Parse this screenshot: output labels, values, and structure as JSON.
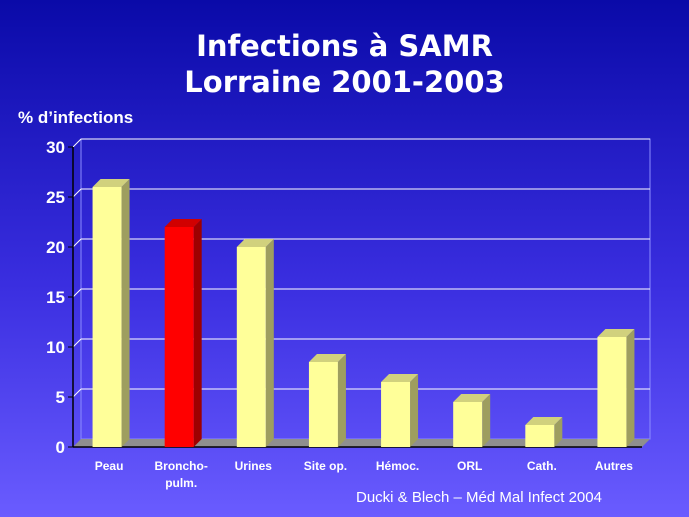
{
  "title_line1": "Infections à SAMR",
  "title_line2": "Lorraine 2001-2003",
  "ylabel": "% d’infections",
  "source": "Ducki & Blech – Méd Mal Infect 2004",
  "colors": {
    "bar": "#ffff99",
    "highlight": "#ff0000",
    "background": "#2f24d8",
    "grid": "#ffffff"
  },
  "chart_data": {
    "type": "bar",
    "categories": [
      "Peau",
      "Broncho-\npulm.",
      "Urines",
      "Site op.",
      "Hémoc.",
      "ORL",
      "Cath.",
      "Autres"
    ],
    "values": [
      26,
      22,
      20,
      8.5,
      6.5,
      4.5,
      2.2,
      11
    ],
    "highlight_index": 1,
    "ylim": [
      0,
      30
    ],
    "yticks": [
      0,
      5,
      10,
      15,
      20,
      25,
      30
    ],
    "grid": true,
    "legend": "none"
  }
}
